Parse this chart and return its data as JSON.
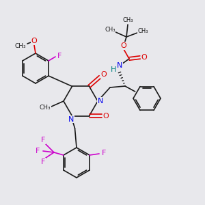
{
  "bg_color": "#e8e8ec",
  "bond_color": "#1a1a1a",
  "N_color": "#0000ee",
  "O_color": "#dd0000",
  "F_color": "#cc00cc",
  "H_color": "#008080",
  "figsize": [
    3.0,
    3.0
  ],
  "dpi": 100,
  "xlim": [
    0,
    300
  ],
  "ylim": [
    0,
    300
  ]
}
